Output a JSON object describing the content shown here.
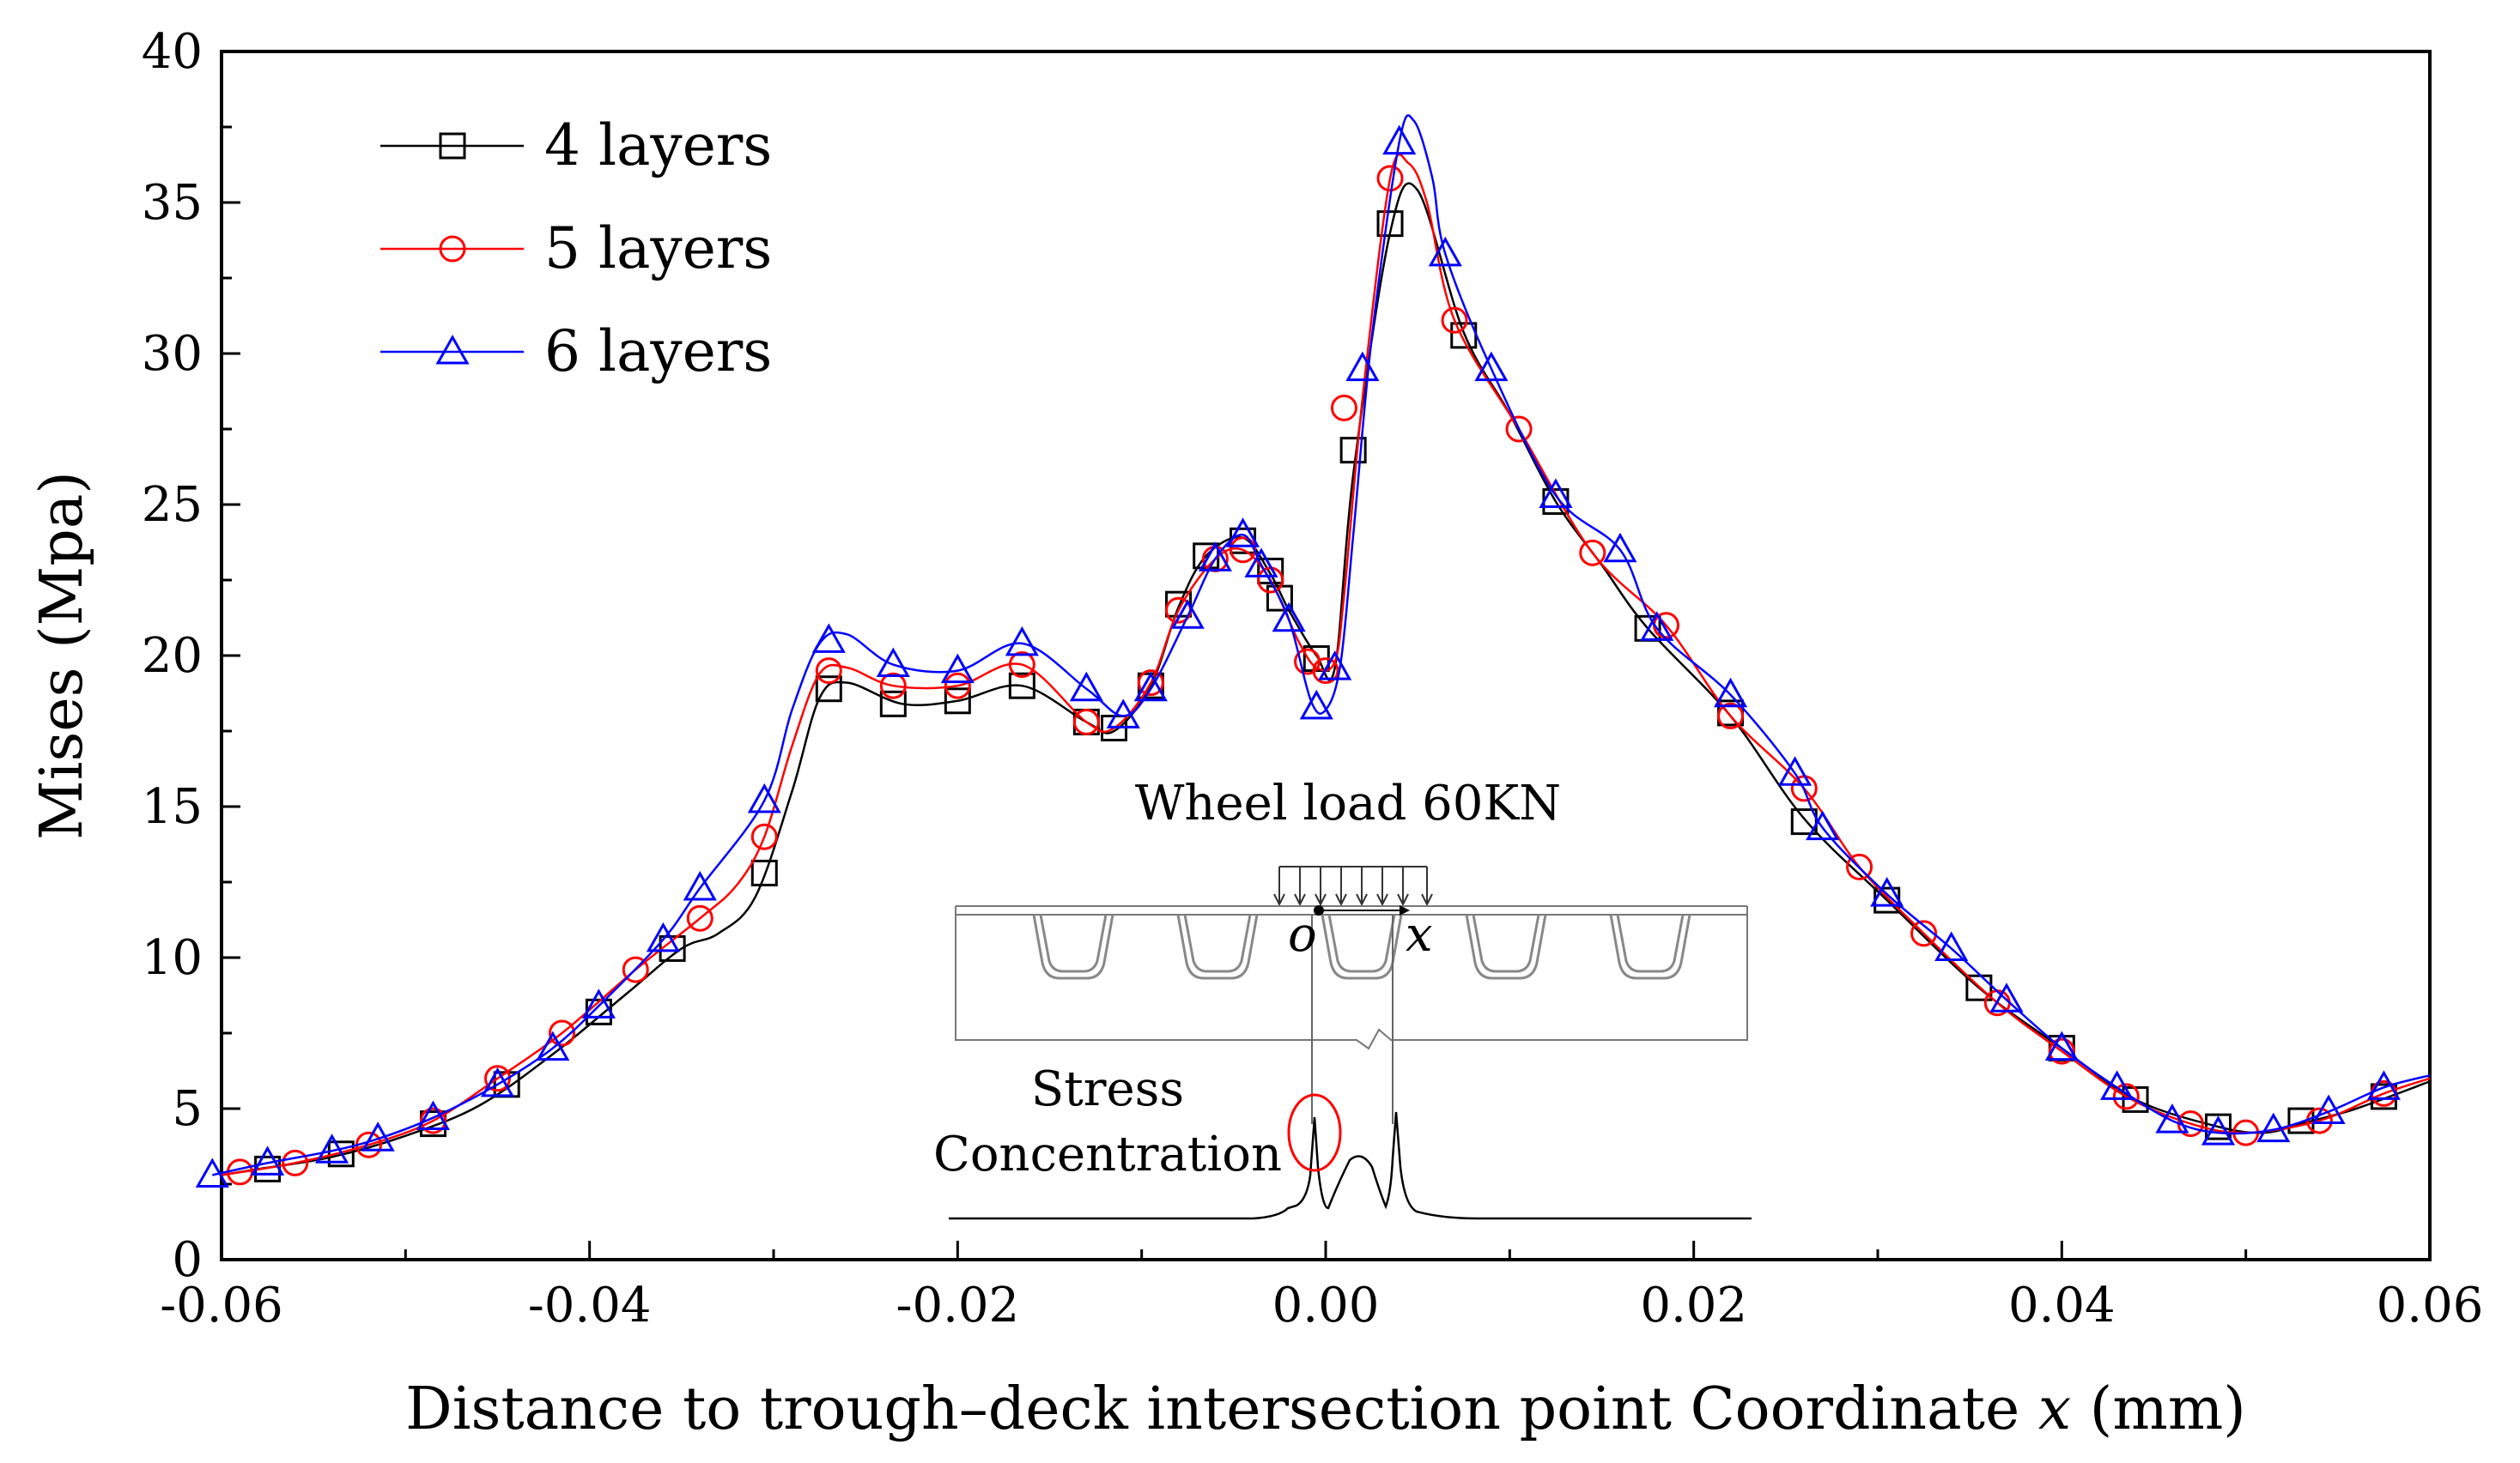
{
  "chart_data": {
    "type": "line",
    "title": "",
    "xlabel_main": "Distance to trough–deck intersection point   Coordinate ",
    "xlabel_var": "x",
    "xlabel_unit": " (mm)",
    "ylabel": "Mises (Mpa)",
    "xlim": [
      -0.06,
      0.06
    ],
    "ylim": [
      0,
      40
    ],
    "x_ticks": [
      -0.06,
      -0.04,
      -0.02,
      0.0,
      0.02,
      0.04,
      0.06
    ],
    "x_tick_labels": [
      "-0.06",
      "-0.04",
      "-0.02",
      "0.00",
      "0.02",
      "0.04",
      "0.06"
    ],
    "y_ticks": [
      0,
      5,
      10,
      15,
      20,
      25,
      30,
      35,
      40
    ],
    "y_tick_labels": [
      "0",
      "5",
      "10",
      "15",
      "20",
      "25",
      "30",
      "35",
      "40"
    ],
    "legend_position": "top-left",
    "series": [
      {
        "name": "4 layers",
        "marker": "square",
        "color": "#000000",
        "x": [
          -0.0575,
          -0.0535,
          -0.0485,
          -0.0445,
          -0.0395,
          -0.0355,
          -0.0305,
          -0.027,
          -0.0235,
          -0.02,
          -0.0165,
          -0.013,
          -0.0115,
          -0.0095,
          -0.008,
          -0.0065,
          -0.0045,
          -0.003,
          -0.0025,
          -0.0005,
          0.0015,
          0.0035,
          0.0075,
          0.0125,
          0.0175,
          0.022,
          0.026,
          0.0305,
          0.0355,
          0.04,
          0.044,
          0.0485,
          0.053,
          0.0575
        ],
        "y": [
          3.0,
          3.5,
          4.5,
          5.8,
          8.2,
          10.3,
          12.8,
          18.9,
          18.4,
          18.5,
          19.0,
          17.8,
          17.6,
          19.0,
          21.7,
          23.3,
          23.8,
          22.8,
          21.9,
          19.9,
          26.8,
          34.3,
          30.6,
          25.1,
          20.9,
          18.1,
          14.5,
          11.9,
          9.0,
          7.0,
          5.3,
          4.4,
          4.6,
          5.4
        ],
        "curve": [
          [
            -0.06,
            2.8
          ],
          [
            -0.058,
            3.0
          ],
          [
            -0.054,
            3.4
          ],
          [
            -0.05,
            4.1
          ],
          [
            -0.046,
            5.1
          ],
          [
            -0.042,
            6.8
          ],
          [
            -0.038,
            8.8
          ],
          [
            -0.035,
            10.3
          ],
          [
            -0.033,
            10.8
          ],
          [
            -0.031,
            12.0
          ],
          [
            -0.029,
            15.5
          ],
          [
            -0.0275,
            18.6
          ],
          [
            -0.026,
            19.1
          ],
          [
            -0.023,
            18.4
          ],
          [
            -0.02,
            18.5
          ],
          [
            -0.0165,
            19.0
          ],
          [
            -0.013,
            17.8
          ],
          [
            -0.0115,
            17.5
          ],
          [
            -0.0095,
            19.0
          ],
          [
            -0.008,
            21.6
          ],
          [
            -0.0065,
            23.3
          ],
          [
            -0.0045,
            23.9
          ],
          [
            -0.003,
            22.7
          ],
          [
            -0.002,
            21.5
          ],
          [
            -0.0005,
            20.0
          ],
          [
            0.0005,
            19.6
          ],
          [
            0.0015,
            26.0
          ],
          [
            0.0035,
            34.0
          ],
          [
            0.005,
            35.4
          ],
          [
            0.0075,
            30.7
          ],
          [
            0.01,
            28.0
          ],
          [
            0.0125,
            25.1
          ],
          [
            0.015,
            23.0
          ],
          [
            0.0175,
            20.9
          ],
          [
            0.022,
            18.0
          ],
          [
            0.026,
            14.6
          ],
          [
            0.0305,
            11.9
          ],
          [
            0.0355,
            9.0
          ],
          [
            0.04,
            7.0
          ],
          [
            0.044,
            5.3
          ],
          [
            0.0485,
            4.4
          ],
          [
            0.051,
            4.2
          ],
          [
            0.053,
            4.5
          ],
          [
            0.056,
            5.0
          ],
          [
            0.06,
            5.9
          ]
        ]
      },
      {
        "name": "5 layers",
        "marker": "circle",
        "color": "#ff0000",
        "x": [
          -0.059,
          -0.056,
          -0.052,
          -0.0485,
          -0.045,
          -0.0415,
          -0.0375,
          -0.034,
          -0.0305,
          -0.027,
          -0.0235,
          -0.02,
          -0.0165,
          -0.013,
          -0.0095,
          -0.008,
          -0.006,
          -0.0045,
          -0.003,
          -0.001,
          0.0,
          0.001,
          0.0035,
          0.007,
          0.0105,
          0.0145,
          0.0185,
          0.022,
          0.026,
          0.029,
          0.0325,
          0.0365,
          0.04,
          0.0435,
          0.047,
          0.05,
          0.054,
          0.0575
        ],
        "y": [
          2.9,
          3.2,
          3.8,
          4.6,
          6.0,
          7.5,
          9.6,
          11.3,
          14.0,
          19.5,
          19.0,
          19.0,
          19.7,
          17.8,
          19.1,
          21.5,
          23.2,
          23.5,
          22.5,
          19.8,
          19.5,
          28.2,
          35.8,
          31.1,
          27.5,
          23.4,
          21.0,
          18.0,
          15.6,
          13.0,
          10.8,
          8.5,
          6.9,
          5.4,
          4.5,
          4.2,
          4.6,
          5.5
        ],
        "curve": [
          [
            -0.06,
            2.8
          ],
          [
            -0.056,
            3.2
          ],
          [
            -0.052,
            3.8
          ],
          [
            -0.0485,
            4.6
          ],
          [
            -0.045,
            6.0
          ],
          [
            -0.0415,
            7.5
          ],
          [
            -0.0375,
            9.6
          ],
          [
            -0.034,
            11.3
          ],
          [
            -0.032,
            12.4
          ],
          [
            -0.0305,
            14.0
          ],
          [
            -0.029,
            17.0
          ],
          [
            -0.0275,
            19.4
          ],
          [
            -0.026,
            19.6
          ],
          [
            -0.0235,
            19.0
          ],
          [
            -0.02,
            19.0
          ],
          [
            -0.0165,
            19.7
          ],
          [
            -0.013,
            17.8
          ],
          [
            -0.0115,
            17.6
          ],
          [
            -0.0095,
            19.1
          ],
          [
            -0.008,
            21.5
          ],
          [
            -0.006,
            23.2
          ],
          [
            -0.0045,
            23.5
          ],
          [
            -0.003,
            22.5
          ],
          [
            -0.0015,
            20.5
          ],
          [
            -0.0005,
            19.6
          ],
          [
            0.0005,
            19.8
          ],
          [
            0.001,
            22.0
          ],
          [
            0.002,
            28.5
          ],
          [
            0.0035,
            35.8
          ],
          [
            0.0045,
            36.3
          ],
          [
            0.0055,
            35.0
          ],
          [
            0.007,
            31.1
          ],
          [
            0.0105,
            27.5
          ],
          [
            0.0145,
            23.4
          ],
          [
            0.0185,
            21.0
          ],
          [
            0.022,
            18.0
          ],
          [
            0.026,
            15.6
          ],
          [
            0.029,
            13.0
          ],
          [
            0.0325,
            10.8
          ],
          [
            0.0365,
            8.5
          ],
          [
            0.04,
            6.9
          ],
          [
            0.0435,
            5.4
          ],
          [
            0.047,
            4.5
          ],
          [
            0.05,
            4.2
          ],
          [
            0.054,
            4.6
          ],
          [
            0.0575,
            5.5
          ],
          [
            0.06,
            6.0
          ]
        ]
      },
      {
        "name": "6 layers",
        "marker": "triangle",
        "color": "#0000ff",
        "x": [
          -0.0605,
          -0.0575,
          -0.054,
          -0.0515,
          -0.0485,
          -0.045,
          -0.042,
          -0.0395,
          -0.036,
          -0.034,
          -0.0305,
          -0.027,
          -0.0235,
          -0.02,
          -0.0165,
          -0.013,
          -0.011,
          -0.0095,
          -0.0075,
          -0.006,
          -0.0045,
          -0.0035,
          -0.002,
          -0.0005,
          0.0005,
          0.002,
          0.004,
          0.0065,
          0.009,
          0.0125,
          0.016,
          0.018,
          0.022,
          0.0255,
          0.027,
          0.0305,
          0.034,
          0.037,
          0.04,
          0.043,
          0.046,
          0.0485,
          0.0515,
          0.0545,
          0.0575
        ],
        "y": [
          2.8,
          3.2,
          3.6,
          4.0,
          4.7,
          5.8,
          7.0,
          8.4,
          10.6,
          12.3,
          15.2,
          20.5,
          19.7,
          19.5,
          20.4,
          18.9,
          18.0,
          18.9,
          21.3,
          23.2,
          24.0,
          23.0,
          21.2,
          18.3,
          19.6,
          29.5,
          37.0,
          33.3,
          29.5,
          25.3,
          23.5,
          20.9,
          18.7,
          16.1,
          14.3,
          12.1,
          10.3,
          8.6,
          7.0,
          5.7,
          4.6,
          4.2,
          4.3,
          4.9,
          5.7
        ],
        "curve": [
          [
            -0.0605,
            2.8
          ],
          [
            -0.0575,
            3.2
          ],
          [
            -0.054,
            3.6
          ],
          [
            -0.0515,
            4.0
          ],
          [
            -0.0485,
            4.7
          ],
          [
            -0.045,
            5.8
          ],
          [
            -0.042,
            7.0
          ],
          [
            -0.0395,
            8.4
          ],
          [
            -0.036,
            10.6
          ],
          [
            -0.034,
            12.3
          ],
          [
            -0.0305,
            15.2
          ],
          [
            -0.029,
            18.2
          ],
          [
            -0.0275,
            20.4
          ],
          [
            -0.026,
            20.7
          ],
          [
            -0.0235,
            19.7
          ],
          [
            -0.02,
            19.5
          ],
          [
            -0.0165,
            20.4
          ],
          [
            -0.013,
            18.9
          ],
          [
            -0.011,
            18.0
          ],
          [
            -0.0095,
            18.9
          ],
          [
            -0.0075,
            21.3
          ],
          [
            -0.006,
            23.2
          ],
          [
            -0.0045,
            24.0
          ],
          [
            -0.0035,
            23.0
          ],
          [
            -0.002,
            21.2
          ],
          [
            -0.0008,
            18.5
          ],
          [
            0.0,
            18.2
          ],
          [
            0.0008,
            19.7
          ],
          [
            0.0015,
            24.0
          ],
          [
            0.0025,
            30.5
          ],
          [
            0.004,
            37.0
          ],
          [
            0.0048,
            37.7
          ],
          [
            0.0058,
            35.8
          ],
          [
            0.0065,
            33.3
          ],
          [
            0.009,
            29.5
          ],
          [
            0.0125,
            25.3
          ],
          [
            0.016,
            23.5
          ],
          [
            0.018,
            20.9
          ],
          [
            0.022,
            18.7
          ],
          [
            0.0255,
            16.1
          ],
          [
            0.027,
            14.3
          ],
          [
            0.0305,
            12.1
          ],
          [
            0.034,
            10.3
          ],
          [
            0.037,
            8.6
          ],
          [
            0.04,
            7.0
          ],
          [
            0.043,
            5.7
          ],
          [
            0.046,
            4.6
          ],
          [
            0.0485,
            4.2
          ],
          [
            0.0515,
            4.3
          ],
          [
            0.0545,
            4.9
          ],
          [
            0.0575,
            5.7
          ],
          [
            0.06,
            6.1
          ]
        ]
      }
    ]
  },
  "inset": {
    "title": "Wheel load 60KN",
    "origin_label": "o",
    "axis_label": "x",
    "annotation_line1": "Stress",
    "annotation_line2": "Concentration"
  }
}
